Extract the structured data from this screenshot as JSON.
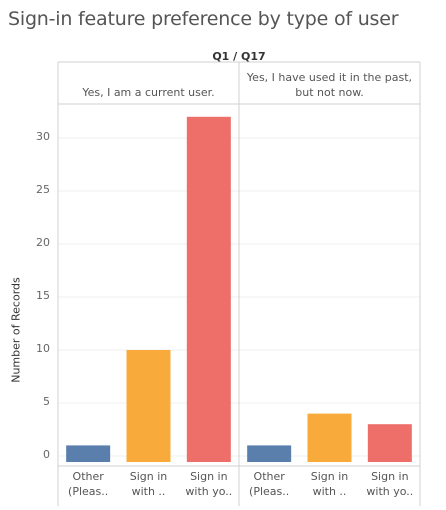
{
  "title": "Sign-in feature preference by type of user",
  "colors": {
    "other": "#5b7fad",
    "sign_in_with_dots": "#f8ab3a",
    "sign_in_with_yo": "#ee6e6a"
  },
  "chart_data": {
    "type": "bar",
    "column_header": "Q1 / Q17",
    "ylabel": "Number of Records",
    "ylim": [
      0,
      33
    ],
    "yticks": [
      0,
      5,
      10,
      15,
      20,
      25,
      30
    ],
    "categories": [
      "Other (Pleas..",
      "Sign in with ..",
      "Sign in with yo.."
    ],
    "category_lines": [
      [
        "Other",
        "(Pleas.."
      ],
      [
        "Sign in",
        "with .."
      ],
      [
        "Sign in",
        "with yo.."
      ]
    ],
    "panels": [
      {
        "header": "Yes, I am a current user.",
        "header_lines": [
          "Yes, I am a current user."
        ],
        "values": [
          1,
          10,
          32
        ]
      },
      {
        "header": "Yes, I have used it in the past, but not now.",
        "header_lines": [
          "Yes, I have used it in the past,",
          "but not now."
        ],
        "values": [
          1,
          4,
          3
        ]
      }
    ]
  }
}
